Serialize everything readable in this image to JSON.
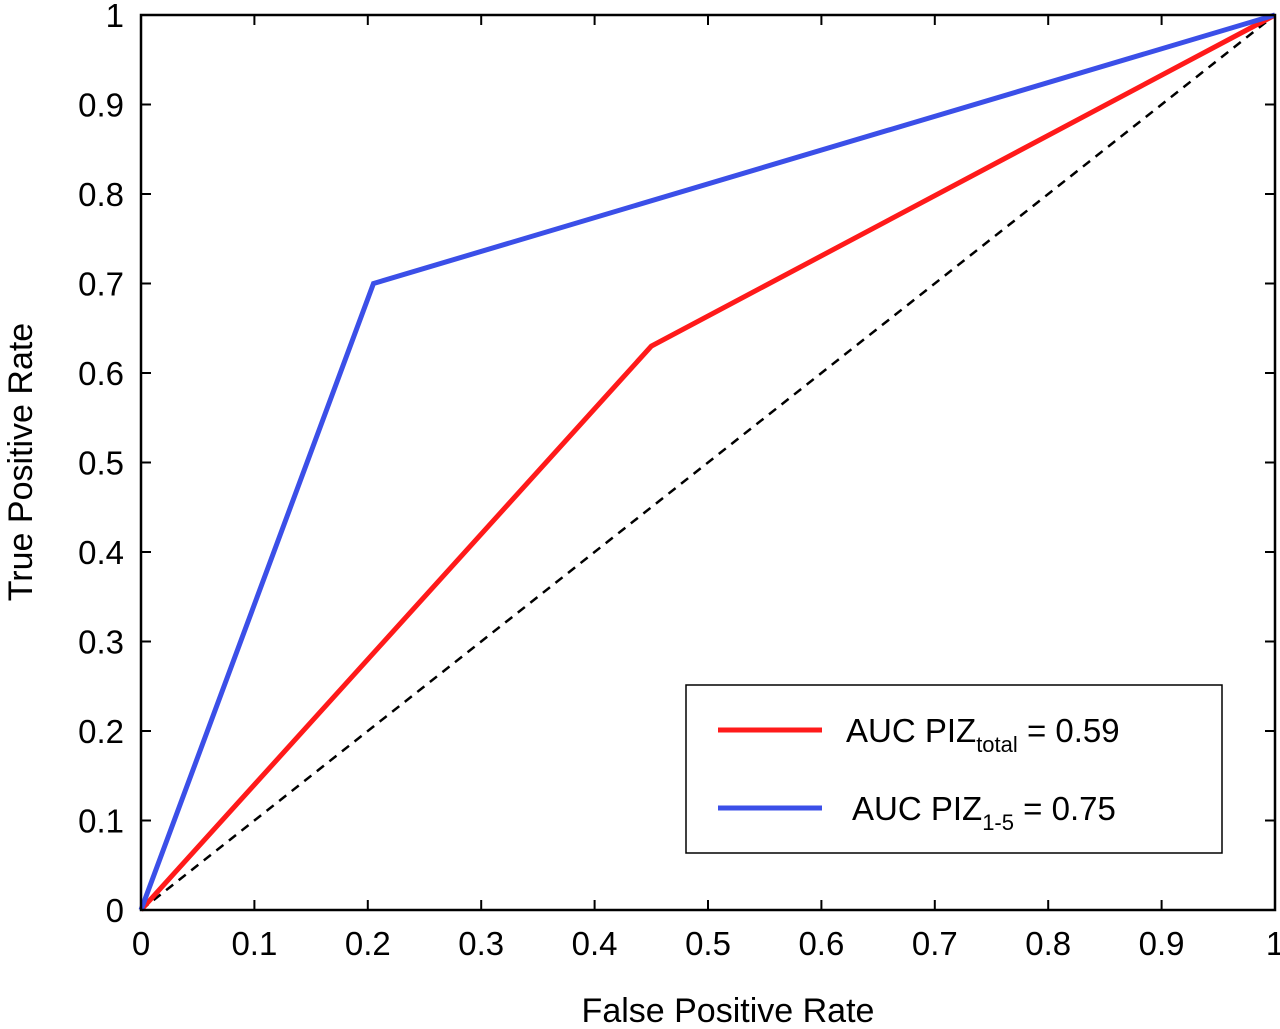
{
  "chart_data": {
    "type": "line",
    "xlabel": "False Positive Rate",
    "ylabel": "True Positive Rate",
    "xlim": [
      0,
      1
    ],
    "ylim": [
      0,
      1
    ],
    "xticks": [
      0,
      0.1,
      0.2,
      0.3,
      0.4,
      0.5,
      0.6,
      0.7,
      0.8,
      0.9,
      1
    ],
    "xtick_labels": [
      "0",
      "0.1",
      "0.2",
      "0.3",
      "0.4",
      "0.5",
      "0.6",
      "0.7",
      "0.8",
      "0.9",
      "1"
    ],
    "yticks": [
      0,
      0.1,
      0.2,
      0.3,
      0.4,
      0.5,
      0.6,
      0.7,
      0.8,
      0.9,
      1
    ],
    "ytick_labels": [
      "0",
      "0.1",
      "0.2",
      "0.3",
      "0.4",
      "0.5",
      "0.6",
      "0.7",
      "0.8",
      "0.9",
      "1"
    ],
    "grid": false,
    "legend_position": "bottom-right",
    "series": [
      {
        "name": "AUC PIZtotal = 0.59",
        "legend": {
          "main": "AUC PIZ",
          "sub": "total",
          "suffix": " = 0.59"
        },
        "color": "#ff1a1a",
        "x": [
          0,
          0.45,
          1
        ],
        "y": [
          0,
          0.63,
          1
        ]
      },
      {
        "name": "AUC PIZ1-5 = 0.75",
        "legend": {
          "main": "AUC PIZ",
          "sub": "1-5",
          "suffix": "  = 0.75"
        },
        "color": "#3b4fe8",
        "x": [
          0,
          0.205,
          1
        ],
        "y": [
          0,
          0.7,
          1
        ]
      }
    ],
    "reference_line": {
      "x": [
        0,
        1
      ],
      "y": [
        0,
        1
      ],
      "color": "#000000",
      "style": "dashed"
    }
  }
}
